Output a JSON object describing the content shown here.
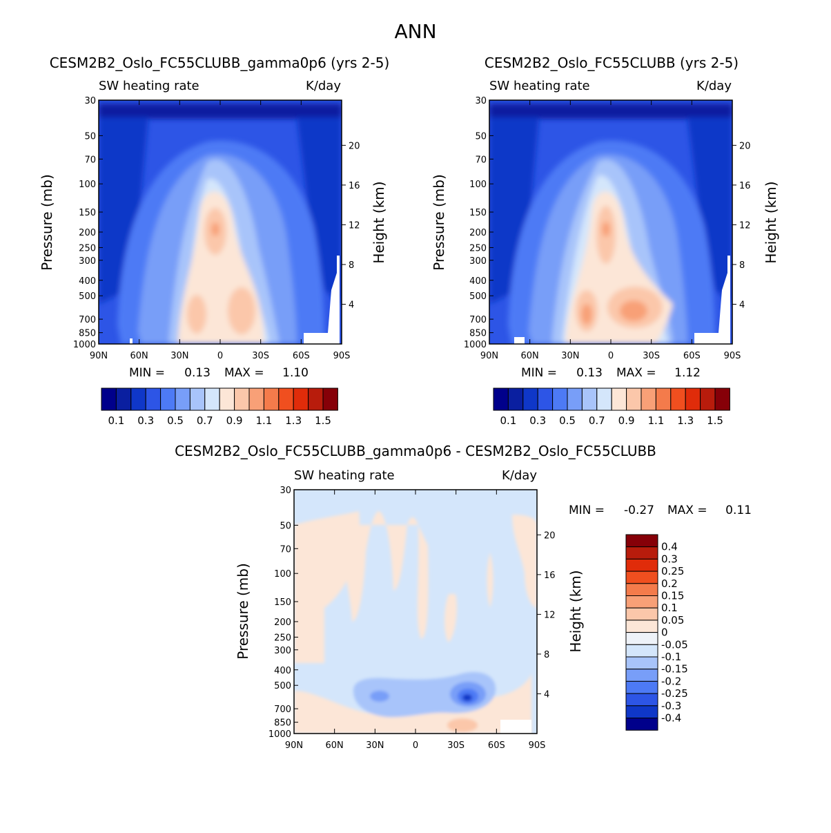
{
  "page_title": "ANN",
  "legend_scales": {
    "main": {
      "labels": [
        "0.1",
        "0.3",
        "0.5",
        "0.7",
        "0.9",
        "1.1",
        "1.3",
        "1.5"
      ],
      "colors": [
        "#00008b",
        "#0a1fa0",
        "#0f37c8",
        "#2d55e6",
        "#4d7af5",
        "#789ef8",
        "#a8c4fa",
        "#d4e6fb",
        "#fce6d7",
        "#fbc7aa",
        "#f8a077",
        "#f47b4b",
        "#f04f1f",
        "#e02c0a",
        "#b81c0c",
        "#860008"
      ]
    },
    "diff": {
      "labels": [
        "0.4",
        "0.3",
        "0.25",
        "0.2",
        "0.15",
        "0.1",
        "0.05",
        "0",
        "-0.05",
        "-0.1",
        "-0.15",
        "-0.2",
        "-0.25",
        "-0.3",
        "-0.4"
      ],
      "colors": [
        "#860008",
        "#b81c0c",
        "#e02c0a",
        "#f04f1f",
        "#f47b4b",
        "#f8a077",
        "#fbc7aa",
        "#fce6d7",
        "#eef2f8",
        "#d4e6fb",
        "#a8c4fa",
        "#789ef8",
        "#4d7af5",
        "#2d55e6",
        "#0f37c8",
        "#00008b"
      ]
    }
  },
  "chart_data": [
    {
      "type": "contour",
      "panel": "left",
      "title": "CESM2B2_Oslo_FC55CLUBB_gamma0p6 (yrs 2-5)",
      "subtitle_left": "SW heating rate",
      "subtitle_right": "K/day",
      "ylabel": "Pressure (mb)",
      "ylabel_right": "Height (km)",
      "x_ticks": [
        "90N",
        "60N",
        "30N",
        "0",
        "30S",
        "60S",
        "90S"
      ],
      "x_values": [
        90,
        60,
        30,
        0,
        -30,
        -60,
        -90
      ],
      "p_ticks": [
        30,
        50,
        70,
        100,
        150,
        200,
        250,
        300,
        400,
        500,
        700,
        850,
        1000
      ],
      "height_ticks": [
        20,
        16,
        12,
        8,
        4
      ],
      "ylim": [
        30,
        1000
      ],
      "min_label": "MIN =",
      "min": "0.13",
      "max_label": "MAX =",
      "max": "1.10"
    },
    {
      "type": "contour",
      "panel": "right",
      "title": "CESM2B2_Oslo_FC55CLUBB (yrs 2-5)",
      "subtitle_left": "SW heating rate",
      "subtitle_right": "K/day",
      "ylabel": "Pressure (mb)",
      "ylabel_right": "Height (km)",
      "x_ticks": [
        "90N",
        "60N",
        "30N",
        "0",
        "30S",
        "60S",
        "90S"
      ],
      "x_values": [
        90,
        60,
        30,
        0,
        -30,
        -60,
        -90
      ],
      "p_ticks": [
        30,
        50,
        70,
        100,
        150,
        200,
        250,
        300,
        400,
        500,
        700,
        850,
        1000
      ],
      "height_ticks": [
        20,
        16,
        12,
        8,
        4
      ],
      "ylim": [
        30,
        1000
      ],
      "min_label": "MIN =",
      "min": "0.13",
      "max_label": "MAX =",
      "max": "1.12"
    },
    {
      "type": "contour",
      "panel": "diff",
      "title": "CESM2B2_Oslo_FC55CLUBB_gamma0p6 - CESM2B2_Oslo_FC55CLUBB",
      "subtitle_left": "SW heating rate",
      "subtitle_right": "K/day",
      "ylabel": "Pressure (mb)",
      "ylabel_right": "Height (km)",
      "x_ticks": [
        "90N",
        "60N",
        "30N",
        "0",
        "30S",
        "60S",
        "90S"
      ],
      "x_values": [
        90,
        60,
        30,
        0,
        -30,
        -60,
        -90
      ],
      "p_ticks": [
        30,
        50,
        70,
        100,
        150,
        200,
        250,
        300,
        400,
        500,
        700,
        850,
        1000
      ],
      "height_ticks": [
        20,
        16,
        12,
        8,
        4
      ],
      "ylim": [
        30,
        1000
      ],
      "min_label": "MIN =",
      "min": "-0.27",
      "max_label": "MAX =",
      "max": "0.11"
    }
  ]
}
